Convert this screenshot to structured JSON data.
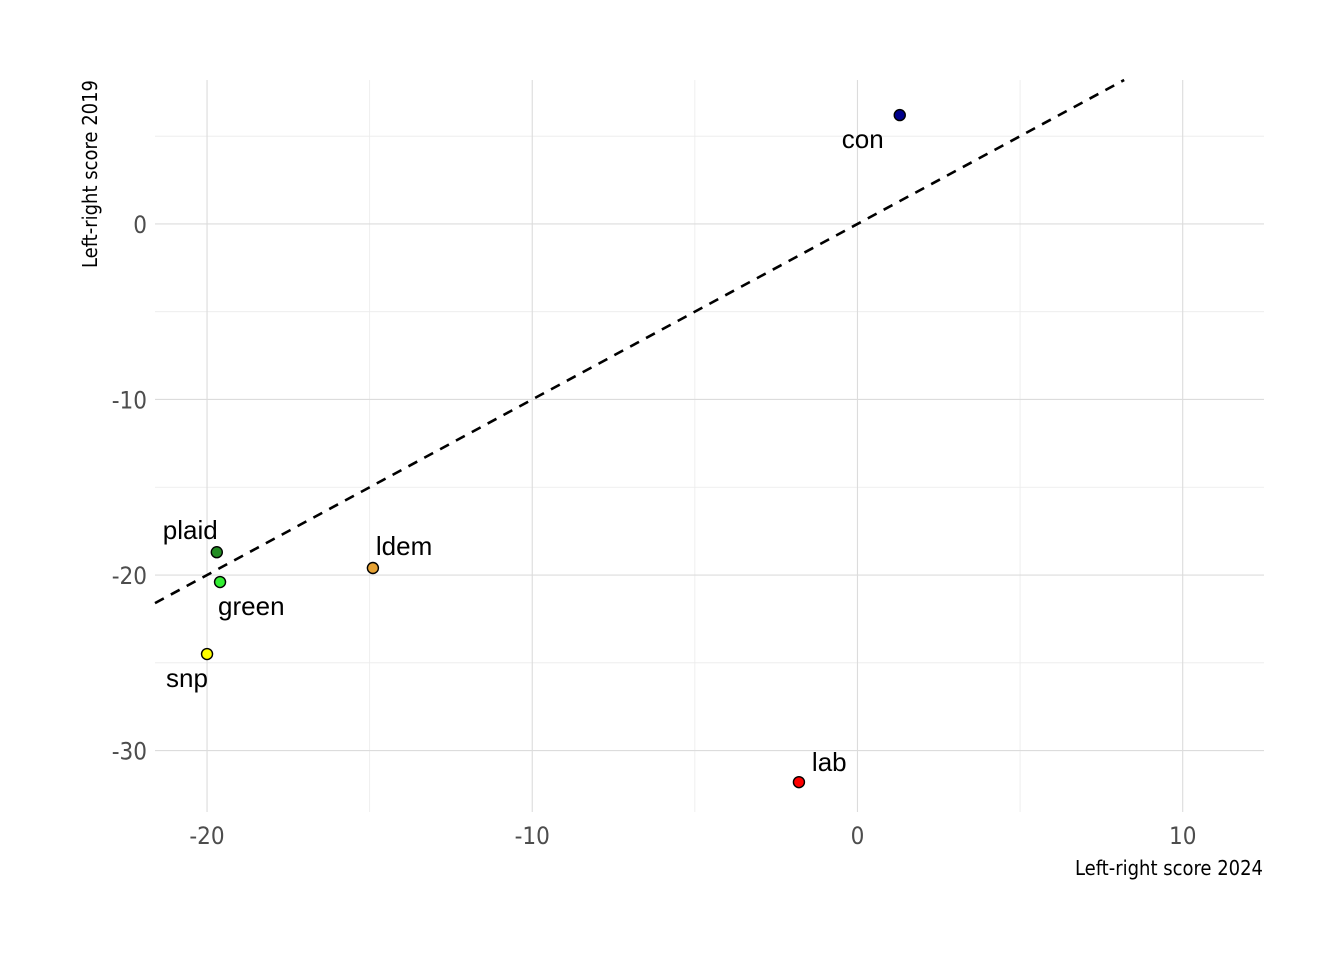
{
  "chart_data": {
    "type": "scatter",
    "xlabel": "Left-right score 2024",
    "ylabel": "Left-right score 2019",
    "xlim": [
      -21.6,
      12.5
    ],
    "ylim": [
      -33.5,
      8.2
    ],
    "x_ticks": [
      -20,
      -10,
      0,
      10
    ],
    "y_ticks": [
      -30,
      -20,
      -10,
      0
    ],
    "grid": true,
    "reference_line": {
      "slope": 1,
      "intercept": 0,
      "style": "dashed",
      "color": "#000000"
    },
    "points": [
      {
        "label": "con",
        "x": 1.3,
        "y": 6.2,
        "color": "#00008b"
      },
      {
        "label": "lab",
        "x": -1.8,
        "y": -31.8,
        "color": "#ff0000"
      },
      {
        "label": "ldem",
        "x": -14.9,
        "y": -19.6,
        "color": "#e6a234"
      },
      {
        "label": "plaid",
        "x": -19.7,
        "y": -18.7,
        "color": "#228b22"
      },
      {
        "label": "green",
        "x": -19.6,
        "y": -20.4,
        "color": "#33ee33"
      },
      {
        "label": "snp",
        "x": -20.0,
        "y": -24.5,
        "color": "#ffff00"
      }
    ]
  }
}
